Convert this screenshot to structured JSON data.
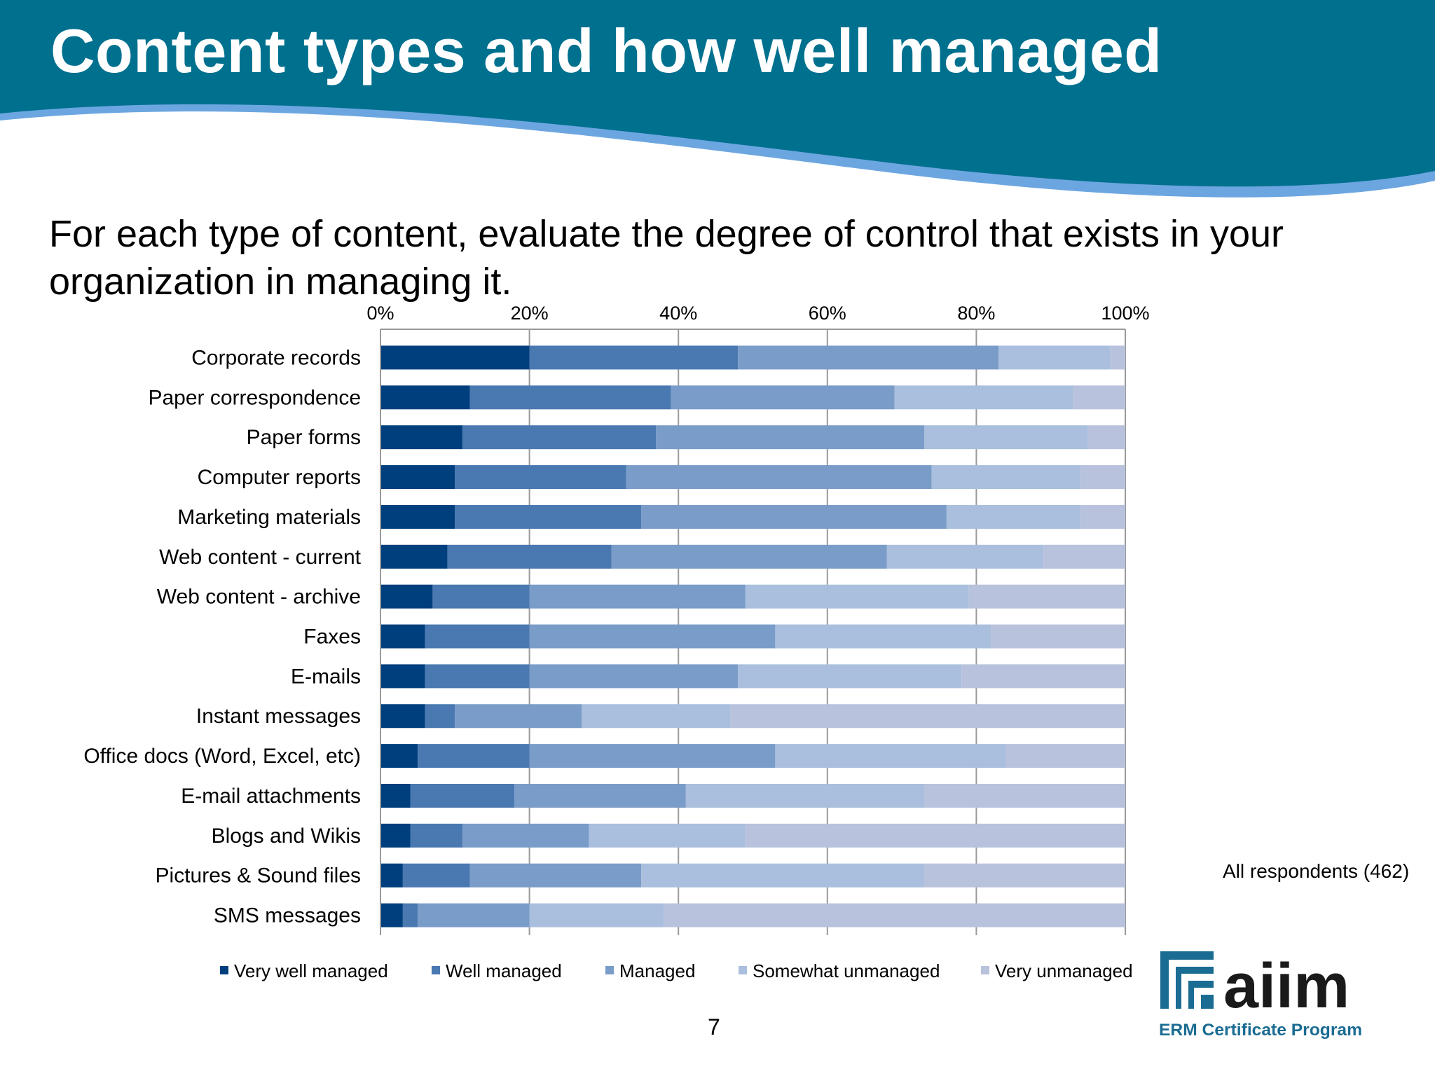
{
  "slide": {
    "title": "Content types and how well managed",
    "question": "For each type of content, evaluate the degree of control that exists in your organization in managing it.",
    "respondents_note": "All respondents (462)",
    "page_number": "7"
  },
  "logo": {
    "brand": "aiim",
    "tagline": "ERM Certificate Program"
  },
  "colors": {
    "header_dark": "#00708F",
    "header_light_stripe": "#6CA6E0"
  },
  "chart_data": {
    "type": "bar",
    "orientation": "horizontal",
    "stacked": "percent",
    "title": "",
    "xlabel": "",
    "ylabel": "",
    "xlim": [
      0,
      100
    ],
    "x_ticks": [
      "0%",
      "20%",
      "40%",
      "60%",
      "80%",
      "100%"
    ],
    "grid": true,
    "legend_position": "bottom",
    "categories": [
      "Corporate records",
      "Paper correspondence",
      "Paper forms",
      "Computer reports",
      "Marketing materials",
      "Web content - current",
      "Web content - archive",
      "Faxes",
      "E-mails",
      "Instant messages",
      "Office docs (Word, Excel, etc)",
      "E-mail attachments",
      "Blogs and Wikis",
      "Pictures & Sound files",
      "SMS messages"
    ],
    "series": [
      {
        "name": "Very well managed",
        "color": "#003F7D",
        "values": [
          20,
          12,
          11,
          10,
          10,
          9,
          7,
          6,
          6,
          6,
          5,
          4,
          4,
          3,
          3
        ]
      },
      {
        "name": "Well managed",
        "color": "#4A79B2",
        "values": [
          28,
          27,
          26,
          23,
          25,
          22,
          13,
          14,
          14,
          4,
          15,
          14,
          7,
          9,
          2
        ]
      },
      {
        "name": "Managed",
        "color": "#7A9CC9",
        "values": [
          35,
          30,
          36,
          41,
          41,
          37,
          29,
          33,
          28,
          17,
          33,
          23,
          17,
          23,
          15
        ]
      },
      {
        "name": "Somewhat unmanaged",
        "color": "#A9BFDD",
        "values": [
          15,
          24,
          22,
          20,
          18,
          21,
          30,
          29,
          30,
          20,
          31,
          32,
          21,
          38,
          18
        ]
      },
      {
        "name": "Very unmanaged",
        "color": "#B9C2DC",
        "values": [
          2,
          7,
          5,
          6,
          6,
          11,
          21,
          18,
          22,
          53,
          16,
          27,
          51,
          27,
          62
        ]
      }
    ]
  }
}
